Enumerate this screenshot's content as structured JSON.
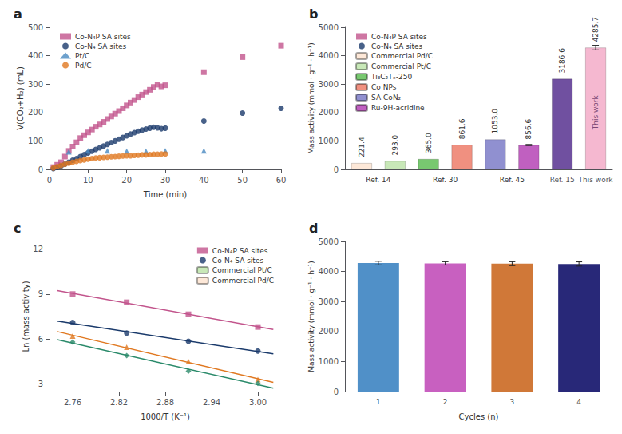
{
  "chart_data": [
    {
      "title": "a",
      "type": "scatter",
      "xlabel": "Time (min)",
      "ylabel": "V(CO₂+H₂) (mL)",
      "xlim": [
        0,
        60
      ],
      "xticks": [
        0,
        10,
        20,
        30,
        40,
        50,
        60
      ],
      "ylim": [
        0,
        500
      ],
      "yticks": [
        0,
        100,
        200,
        300,
        400,
        500
      ],
      "grid": false,
      "legend": "upper left",
      "series": [
        {
          "name": "Co-N₄P SA sites",
          "color": "#c2548c",
          "marker": "square",
          "x": [
            1,
            2,
            3,
            4,
            5,
            6,
            7,
            8,
            9,
            10,
            11,
            12,
            13,
            14,
            15,
            16,
            17,
            18,
            19,
            20,
            21,
            22,
            23,
            24,
            25,
            26,
            27,
            28,
            29,
            30,
            40,
            50,
            60
          ],
          "values": [
            8,
            16,
            25,
            45,
            65,
            80,
            95,
            110,
            120,
            130,
            140,
            150,
            158,
            167,
            177,
            186,
            196,
            205,
            215,
            225,
            235,
            244,
            254,
            263,
            272,
            280,
            290,
            298,
            292,
            296,
            342,
            395,
            435
          ]
        },
        {
          "name": "Co-N₄ SA sites",
          "color": "#1a3a6b",
          "marker": "circle",
          "x": [
            1,
            2,
            3,
            4,
            5,
            6,
            7,
            8,
            9,
            10,
            11,
            12,
            13,
            14,
            15,
            16,
            17,
            18,
            19,
            20,
            21,
            22,
            23,
            24,
            25,
            26,
            27,
            28,
            29,
            30,
            40,
            50,
            60
          ],
          "values": [
            3,
            7,
            12,
            18,
            25,
            32,
            38,
            45,
            52,
            58,
            64,
            70,
            76,
            82,
            88,
            94,
            100,
            106,
            112,
            118,
            124,
            129,
            134,
            138,
            142,
            145,
            148,
            146,
            143,
            145,
            170,
            198,
            215
          ]
        },
        {
          "name": "Pt/C",
          "color": "#4a8ac0",
          "marker": "triangle",
          "x": [
            5,
            10,
            15,
            20,
            25,
            30,
            40
          ],
          "values": [
            62,
            65,
            65,
            64,
            64,
            65,
            65
          ]
        },
        {
          "name": "Pd/C",
          "color": "#e07820",
          "marker": "circle",
          "x": [
            1,
            2,
            3,
            4,
            5,
            6,
            7,
            8,
            9,
            10,
            11,
            12,
            13,
            14,
            15,
            16,
            17,
            18,
            19,
            20,
            21,
            22,
            23,
            24,
            25,
            26,
            27,
            28,
            29,
            30
          ],
          "values": [
            5,
            10,
            14,
            18,
            22,
            25,
            28,
            31,
            33,
            36,
            38,
            40,
            41,
            42,
            43,
            44,
            45,
            46,
            47,
            48,
            48,
            49,
            50,
            51,
            51,
            52,
            53,
            53,
            54,
            54
          ]
        }
      ]
    },
    {
      "title": "b",
      "type": "bar",
      "ylabel": "Mass activity (mmol · g⁻¹ · h⁻¹)",
      "categories": [
        "Ref. 14",
        null,
        "Ref. 30",
        null,
        "Ref. 45",
        null,
        "Ref. 15",
        "This work"
      ],
      "ylim": [
        0,
        5000
      ],
      "yticks": [
        0,
        1000,
        2000,
        3000,
        4000,
        5000
      ],
      "grid": false,
      "legend": "upper left",
      "data_labels": true,
      "series": [
        {
          "name": "Co-N₄P SA sites",
          "color": "#f5b8d0",
          "values": [
            null,
            null,
            null,
            null,
            null,
            null,
            null,
            4285.7
          ],
          "value_labels": [
            null,
            null,
            null,
            null,
            null,
            null,
            null,
            "4285.7"
          ],
          "errors": [
            null,
            null,
            null,
            null,
            null,
            null,
            null,
            80
          ]
        },
        {
          "name": "Co-N₄ SA sites",
          "color": "#9090c8",
          "values": [
            null,
            null,
            null,
            null,
            null,
            null,
            null,
            null
          ]
        },
        {
          "name": "Commercial Pd/C",
          "color": "#fde8d8",
          "values": [
            221.4,
            null,
            null,
            null,
            null,
            null,
            null,
            null
          ],
          "value_labels": [
            "221.4",
            null,
            null,
            null,
            null,
            null,
            null,
            null
          ]
        },
        {
          "name": "Commercial Pt/C",
          "color": "#c8e8b8",
          "values": [
            null,
            293.0,
            null,
            null,
            null,
            null,
            null,
            null
          ],
          "value_labels": [
            null,
            "293.0",
            null,
            null,
            null,
            null,
            null,
            null
          ]
        },
        {
          "name": "Ti₃C₂Tₓ-250",
          "color": "#78c870",
          "values": [
            null,
            null,
            365.0,
            null,
            null,
            null,
            null,
            null
          ],
          "value_labels": [
            null,
            null,
            "365.0",
            null,
            null,
            null,
            null,
            null
          ]
        },
        {
          "name": "Co NPs",
          "color": "#f09080",
          "values": [
            null,
            null,
            null,
            861.6,
            null,
            null,
            null,
            null
          ],
          "value_labels": [
            null,
            null,
            null,
            "861.6",
            null,
            null,
            null,
            null
          ]
        },
        {
          "name": "SA-CoN₂",
          "color": "#9090d0",
          "values": [
            null,
            null,
            null,
            null,
            1053.0,
            null,
            null,
            null
          ],
          "value_labels": [
            null,
            null,
            null,
            null,
            "1053.0",
            null,
            null,
            null
          ]
        },
        {
          "name": "Ru-9H-acridine",
          "color": "#c060c0",
          "values": [
            null,
            null,
            null,
            null,
            null,
            856.6,
            null,
            null
          ],
          "value_labels": [
            null,
            null,
            null,
            null,
            null,
            "856.6",
            null,
            null
          ],
          "errors": [
            null,
            null,
            null,
            null,
            null,
            20,
            null,
            null
          ]
        },
        {
          "color": "#7050a0",
          "values": [
            null,
            null,
            null,
            null,
            null,
            null,
            3186.6,
            null
          ],
          "value_labels": [
            null,
            null,
            null,
            null,
            null,
            null,
            "3186.6",
            null
          ]
        }
      ],
      "annotations": [
        {
          "text": "This work",
          "x": "This work",
          "y": 2000
        }
      ]
    },
    {
      "title": "c",
      "type": "scatter",
      "xlabel": "1000/T (K⁻¹)",
      "ylabel": "Ln (mass activity)",
      "xlim": [
        2.73,
        3.03
      ],
      "xticks": [
        2.76,
        2.82,
        2.88,
        2.94,
        {
          "value": 3.0,
          "label": "3.00"
        }
      ],
      "ylim": [
        2.5,
        12.5
      ],
      "yticks": [
        3,
        6,
        9,
        12
      ],
      "grid": false,
      "legend": "upper right",
      "series": [
        {
          "name": "Co-N₄P SA sites",
          "color": "#c2548c",
          "marker": "square",
          "x": [
            2.76,
            2.83,
            2.91,
            3.0
          ],
          "values": [
            9.0,
            8.45,
            7.65,
            6.8
          ],
          "fit": {
            "x": [
              2.74,
              3.02
            ],
            "values": [
              9.2262,
              6.6312
            ]
          }
        },
        {
          "name": "Co-N₄ SA sites",
          "color": "#1a3a6b",
          "marker": "circle",
          "x": [
            2.76,
            2.83,
            2.91,
            3.0
          ],
          "values": [
            7.1,
            6.4,
            5.85,
            5.2
          ],
          "fit": {
            "x": [
              2.74,
              3.02
            ],
            "values": [
              7.1889,
              5.0082
            ]
          }
        },
        {
          "name": "Commercial Pt/C",
          "color": "#e07820",
          "marker": "triangle",
          "x": [
            2.76,
            2.83,
            2.91,
            3.0
          ],
          "values": [
            6.2,
            5.45,
            4.5,
            3.3
          ],
          "fit": {
            "x": [
              2.74,
              3.02
            ],
            "values": [
              6.4953,
              3.1087
            ]
          }
        },
        {
          "name": "Commercial Pd/C",
          "color": "#2a8a6a",
          "marker": "diamond",
          "x": [
            2.76,
            2.83,
            2.91,
            3.0
          ],
          "values": [
            5.8,
            4.9,
            3.85,
            3.05
          ],
          "fit": {
            "x": [
              2.74,
              3.02
            ],
            "values": [
              5.9624,
              2.7219
            ]
          }
        }
      ]
    },
    {
      "title": "d",
      "type": "bar",
      "xlabel": "Cycles (n)",
      "ylabel": "Mass activity (mmol · g⁻¹ · h⁻¹)",
      "categories": [
        "1",
        "2",
        "3",
        "4"
      ],
      "values": [
        4280,
        4270,
        4260,
        4250
      ],
      "errors": [
        60,
        55,
        65,
        70
      ],
      "colors": [
        "#5090c8",
        "#c860c0",
        "#d07838",
        "#282878"
      ],
      "ylim": [
        0,
        5000
      ],
      "yticks": [
        0,
        1000,
        2000,
        3000,
        4000,
        5000
      ],
      "grid": false
    }
  ]
}
